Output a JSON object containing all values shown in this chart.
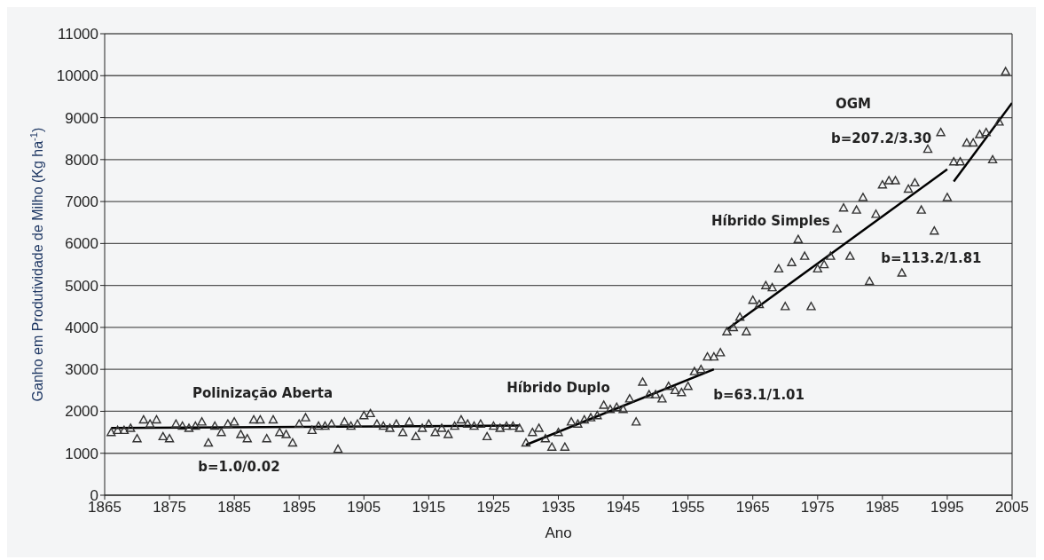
{
  "chart_data": {
    "type": "scatter",
    "xlabel": "Ano",
    "ylabel": "Ganho em Produtividade de Milho (Kg ha$^{-1}$)",
    "xlim": [
      1865,
      2005
    ],
    "xticks": [
      1865,
      1875,
      1885,
      1895,
      1905,
      1915,
      1925,
      1935,
      1945,
      1955,
      1965,
      1975,
      1985,
      1995,
      2005
    ],
    "ylim": [
      0,
      11000
    ],
    "yticks": [
      0,
      1000,
      2000,
      3000,
      4000,
      5000,
      6000,
      7000,
      8000,
      9000,
      10000,
      11000
    ],
    "grid": "y",
    "legend": false,
    "marker": "triangle",
    "series": [
      {
        "color": "#333333",
        "x": [
          1866,
          1867,
          1868,
          1869,
          1870,
          1871,
          1872,
          1873,
          1874,
          1875,
          1876,
          1877,
          1878,
          1879,
          1880,
          1881,
          1882,
          1883,
          1884,
          1885,
          1886,
          1887,
          1888,
          1889,
          1890,
          1891,
          1892,
          1893,
          1894,
          1895,
          1896,
          1897,
          1898,
          1899,
          1900,
          1901,
          1902,
          1903,
          1904,
          1905,
          1906,
          1907,
          1908,
          1909,
          1910,
          1911,
          1912,
          1913,
          1914,
          1915,
          1916,
          1917,
          1918,
          1919,
          1920,
          1921,
          1922,
          1923,
          1924,
          1925,
          1926,
          1927,
          1928,
          1929,
          1930,
          1931,
          1932,
          1933,
          1934,
          1935,
          1936,
          1937,
          1938,
          1939,
          1940,
          1941,
          1942,
          1943,
          1944,
          1945,
          1946,
          1947,
          1948,
          1949,
          1950,
          1951,
          1952,
          1953,
          1954,
          1955,
          1956,
          1957,
          1958,
          1959,
          1960,
          1961,
          1962,
          1963,
          1964,
          1965,
          1966,
          1967,
          1968,
          1969,
          1970,
          1971,
          1972,
          1973,
          1974,
          1975,
          1976,
          1977,
          1978,
          1979,
          1980,
          1981,
          1982,
          1983,
          1984,
          1985,
          1986,
          1987,
          1988,
          1989,
          1990,
          1991,
          1992,
          1993,
          1994,
          1995,
          1996,
          1997,
          1998,
          1999,
          2000,
          2001,
          2002,
          2003,
          2004
        ],
        "values": [
          1500,
          1550,
          1550,
          1600,
          1350,
          1800,
          1700,
          1800,
          1400,
          1350,
          1700,
          1650,
          1600,
          1650,
          1750,
          1250,
          1650,
          1500,
          1700,
          1750,
          1450,
          1350,
          1800,
          1800,
          1350,
          1800,
          1500,
          1450,
          1250,
          1700,
          1850,
          1550,
          1650,
          1650,
          1700,
          1100,
          1750,
          1650,
          1700,
          1900,
          1950,
          1700,
          1650,
          1600,
          1700,
          1500,
          1750,
          1400,
          1600,
          1700,
          1500,
          1600,
          1450,
          1650,
          1800,
          1700,
          1650,
          1700,
          1400,
          1650,
          1600,
          1650,
          1650,
          1600,
          1250,
          1500,
          1600,
          1350,
          1150,
          1500,
          1150,
          1750,
          1700,
          1800,
          1850,
          1900,
          2150,
          2050,
          2100,
          2050,
          2300,
          1750,
          2700,
          2400,
          2400,
          2300,
          2600,
          2500,
          2450,
          2600,
          2950,
          3000,
          3300,
          3300,
          3400,
          3900,
          4000,
          4250,
          3900,
          4650,
          4550,
          5000,
          4950,
          5400,
          4500,
          5550,
          6100,
          5700,
          4500,
          5400,
          5500,
          5700,
          6350,
          6850,
          5700,
          6800,
          7100,
          5100,
          6700,
          7400,
          7500,
          7500,
          5300,
          7300,
          7450,
          6800,
          8250,
          6300,
          8650,
          7100,
          7950,
          7950,
          8400,
          8400,
          8600,
          8650,
          8000,
          8900,
          10100
        ]
      },
      {
        "type": "line",
        "color": "#000000",
        "marker": "none",
        "x": [
          1866,
          1929
        ],
        "values": [
          1600,
          1660
        ]
      },
      {
        "type": "line",
        "color": "#000000",
        "marker": "none",
        "x": [
          1930,
          1959
        ],
        "values": [
          1200,
          3000
        ]
      },
      {
        "type": "line",
        "color": "#000000",
        "marker": "none",
        "x": [
          1961,
          1995
        ],
        "values": [
          3950,
          7770
        ]
      },
      {
        "type": "line",
        "color": "#000000",
        "marker": "none",
        "x": [
          1996,
          2005
        ],
        "values": [
          7480,
          9350
        ]
      }
    ],
    "annotations": [
      "Polinização Aberta",
      "b=1.0/0.02",
      "Híbrido Duplo",
      "b=63.1/1.01",
      "Híbrido Simples",
      "b=113.2/1.81",
      "OGM",
      "b=207.2/3.30"
    ]
  }
}
